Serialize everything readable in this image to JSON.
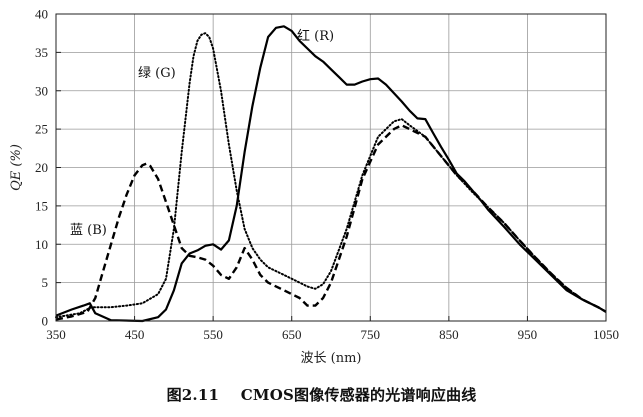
{
  "caption": "图2.11    CMOS图像传感器的光谱响应曲线",
  "chart_data": {
    "type": "line",
    "title": "",
    "xlabel": "波长 (nm)",
    "ylabel": "QE (%)",
    "xlim": [
      350,
      1050
    ],
    "ylim": [
      0,
      40
    ],
    "xticks": [
      350,
      450,
      550,
      650,
      750,
      850,
      950,
      1050
    ],
    "yticks": [
      0,
      5,
      10,
      15,
      20,
      25,
      30,
      35,
      40
    ],
    "grid": true,
    "series": [
      {
        "name": "红 (R)",
        "style": "solid",
        "color": "#000000",
        "x": [
          350,
          370,
          385,
          393,
          400,
          420,
          460,
          480,
          490,
          500,
          510,
          520,
          530,
          540,
          550,
          560,
          570,
          580,
          590,
          600,
          610,
          620,
          630,
          640,
          650,
          660,
          670,
          680,
          690,
          700,
          710,
          720,
          730,
          740,
          750,
          760,
          770,
          780,
          790,
          800,
          810,
          820,
          830,
          840,
          850,
          860,
          870,
          880,
          890,
          900,
          920,
          940,
          960,
          980,
          1000,
          1020,
          1040,
          1050
        ],
        "values": [
          0.7,
          1.5,
          2.0,
          2.3,
          1.0,
          0.1,
          0.0,
          0.5,
          1.5,
          4.0,
          7.5,
          8.8,
          9.2,
          9.8,
          10.0,
          9.3,
          10.5,
          15,
          22,
          28,
          33,
          37,
          38.2,
          38.4,
          37.8,
          36.5,
          35.5,
          34.5,
          33.8,
          32.8,
          31.8,
          30.8,
          30.8,
          31.2,
          31.5,
          31.6,
          30.8,
          29.7,
          28.6,
          27.4,
          26.4,
          26.3,
          24.5,
          22.7,
          21.0,
          19.2,
          18.2,
          17.0,
          15.8,
          14.5,
          12.3,
          10.0,
          8.0,
          6.0,
          4.0,
          2.8,
          1.8,
          1.2
        ]
      },
      {
        "name": "绿 (G)",
        "style": "dotted",
        "color": "#000000",
        "x": [
          350,
          380,
          395,
          420,
          440,
          460,
          480,
          490,
          500,
          510,
          520,
          525,
          530,
          535,
          540,
          545,
          550,
          560,
          570,
          580,
          590,
          600,
          610,
          620,
          640,
          660,
          670,
          680,
          690,
          700,
          720,
          740,
          760,
          780,
          790,
          800,
          820,
          840,
          860,
          880,
          900,
          920,
          940,
          960,
          980,
          1000,
          1020,
          1040,
          1050
        ],
        "values": [
          0.5,
          1.0,
          1.8,
          1.8,
          2.0,
          2.3,
          3.5,
          5.5,
          12,
          22,
          31,
          34.5,
          36.5,
          37.3,
          37.5,
          37,
          35.5,
          30,
          23,
          17,
          12,
          9.5,
          8.0,
          7.0,
          6.0,
          5.0,
          4.5,
          4.2,
          4.8,
          6.5,
          12,
          19,
          24,
          26,
          26.3,
          25.5,
          24,
          21.5,
          19,
          16.8,
          14.8,
          12.8,
          10.5,
          8.3,
          6.2,
          4.3,
          2.8,
          1.8,
          1.2
        ]
      },
      {
        "name": "蓝 (B)",
        "style": "dashed",
        "color": "#000000",
        "x": [
          350,
          370,
          390,
          400,
          410,
          420,
          430,
          440,
          450,
          460,
          465,
          470,
          480,
          490,
          500,
          510,
          520,
          530,
          540,
          550,
          560,
          570,
          580,
          590,
          600,
          610,
          620,
          640,
          660,
          670,
          680,
          690,
          700,
          720,
          740,
          760,
          780,
          790,
          800,
          820,
          840,
          860,
          880,
          900,
          920,
          940,
          960,
          980,
          1000,
          1020,
          1040,
          1050
        ],
        "values": [
          0.2,
          0.6,
          1.2,
          3.0,
          6.5,
          10.0,
          13.5,
          16.5,
          19.0,
          20.3,
          20.5,
          20.2,
          18.5,
          15.5,
          12.5,
          9.5,
          8.5,
          8.3,
          8.0,
          7.2,
          6.0,
          5.5,
          7.0,
          9.5,
          8.0,
          6.0,
          5.0,
          4.0,
          3.0,
          2.0,
          2.0,
          3.0,
          5.0,
          11,
          18.5,
          23,
          25,
          25.5,
          25,
          24,
          21.5,
          19,
          17,
          14.8,
          12.8,
          10.5,
          8.3,
          6.2,
          4.3,
          2.8,
          1.8,
          1.2
        ]
      }
    ]
  }
}
